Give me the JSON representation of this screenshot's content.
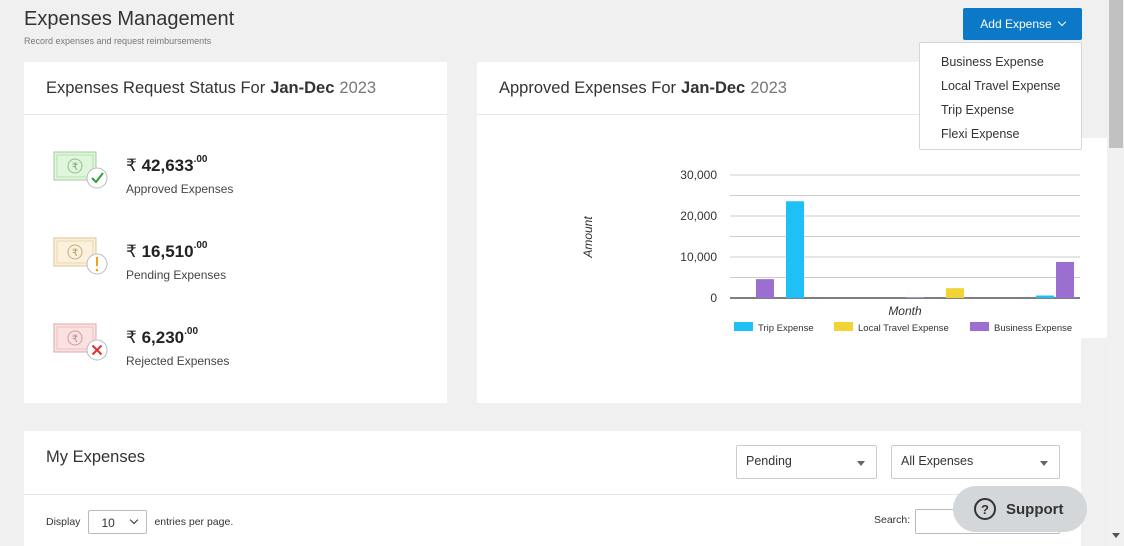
{
  "page": {
    "title": "Expenses Management",
    "subtitle": "Record expenses and request reimbursements"
  },
  "add_expense": {
    "label": "Add Expense",
    "menu": [
      "Business Expense",
      "Local Travel Expense",
      "Trip Expense",
      "Flexi Expense"
    ]
  },
  "status_card": {
    "title_prefix": "Expenses Request Status For",
    "period": "Jan-Dec",
    "year": "2023",
    "items": [
      {
        "currency": "₹",
        "amount": "42,633",
        "decimals": ".00",
        "label": "Approved Expenses",
        "icon": "money-approved-icon",
        "color": "#2e9e3e"
      },
      {
        "currency": "₹",
        "amount": "16,510",
        "decimals": ".00",
        "label": "Pending Expenses",
        "icon": "money-pending-icon",
        "color": "#f0a020"
      },
      {
        "currency": "₹",
        "amount": "6,230",
        "decimals": ".00",
        "label": "Rejected Expenses",
        "icon": "money-rejected-icon",
        "color": "#e03030"
      }
    ]
  },
  "approved_card": {
    "title_prefix": "Approved Expenses For",
    "period": "Jan-Dec",
    "year": "2023"
  },
  "chart_data": {
    "type": "bar",
    "xlabel": "Month",
    "ylabel": "Amount",
    "ylim": [
      0,
      30000
    ],
    "yticks": [
      "30,000",
      "20,000",
      "10,000",
      "0"
    ],
    "ytick_values": [
      30000,
      20000,
      10000,
      0
    ],
    "categories": [
      "",
      "",
      "",
      "",
      "",
      "",
      ""
    ],
    "series": [
      {
        "name": "Trip Expense",
        "color": "#1ec0f5",
        "values": [
          0,
          23600,
          0,
          0,
          0,
          0,
          600
        ]
      },
      {
        "name": "Local Travel Expense",
        "color": "#f2d335",
        "values": [
          0,
          0,
          0,
          0,
          2400,
          0,
          0
        ]
      },
      {
        "name": "Business Expense",
        "color": "#9b6fcf",
        "values": [
          4600,
          0,
          0,
          150,
          0,
          0,
          8800
        ]
      }
    ],
    "grid": true,
    "legend_position": "bottom"
  },
  "my_expenses": {
    "title": "My Expenses",
    "status_filter": "Pending",
    "type_filter": "All Expenses",
    "display_label": "Display",
    "entries_value": "10",
    "entries_suffix": "entries per page.",
    "search_label": "Search:"
  },
  "support": {
    "label": "Support",
    "icon": "question-icon"
  }
}
